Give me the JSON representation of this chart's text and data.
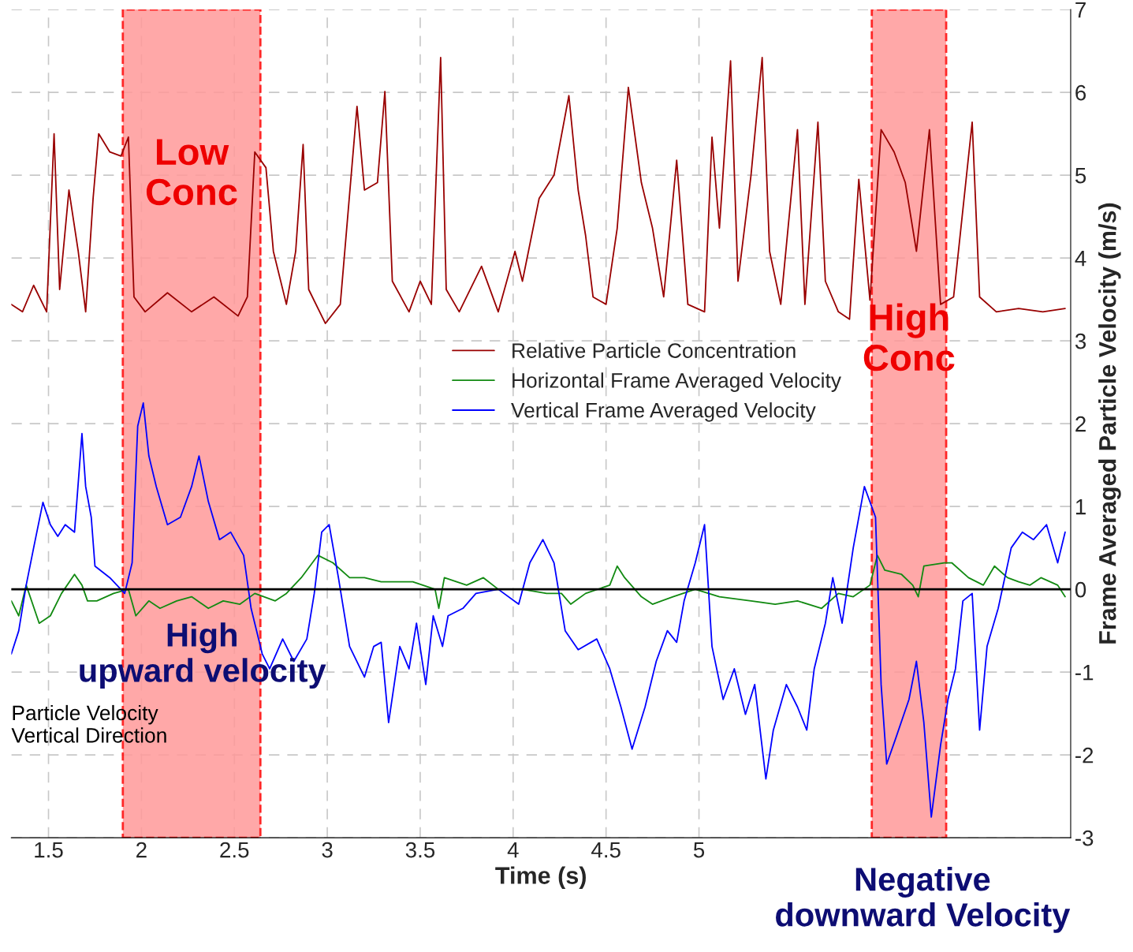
{
  "chart_data": {
    "type": "line",
    "xlabel": "Time (s)",
    "ylabel": "Frame Averaged Particle Velocity (m/s)",
    "xlim": [
      1.3,
      7.0
    ],
    "xticks": [
      1.5,
      2,
      2.5,
      3,
      3.5,
      4,
      4.5,
      5
    ],
    "ylim": [
      -3,
      7
    ],
    "yticks": [
      -3,
      -2,
      -1,
      0,
      1,
      2,
      3,
      4,
      5,
      6,
      7
    ],
    "grid": true,
    "legend": "center",
    "line_style": "solid",
    "marker": "none",
    "series": [
      {
        "name": "Relative Particle Concentration",
        "color": "#990000",
        "x": [
          1.3,
          1.36,
          1.42,
          1.49,
          1.53,
          1.56,
          1.61,
          1.66,
          1.7,
          1.74,
          1.77,
          1.83,
          1.89,
          1.93,
          1.96,
          2.02,
          2.14,
          2.27,
          2.39,
          2.52,
          2.57,
          2.61,
          2.67,
          2.71,
          2.78,
          2.83,
          2.87,
          2.9,
          2.99,
          3.07,
          3.16,
          3.2,
          3.27,
          3.31,
          3.35,
          3.44,
          3.5,
          3.56,
          3.61,
          3.64,
          3.71,
          3.83,
          3.92,
          4.01,
          4.05,
          4.14,
          4.22,
          4.3,
          4.35,
          4.39,
          4.43,
          4.5,
          4.56,
          4.62,
          4.69,
          4.75,
          4.81,
          4.88,
          4.94,
          5.03,
          5.07,
          5.11,
          5.17,
          5.21,
          5.28,
          5.34,
          5.38,
          5.44,
          5.53,
          5.57,
          5.64,
          5.68,
          5.75,
          5.81,
          5.86,
          5.92,
          5.98,
          6.05,
          6.11,
          6.17,
          6.24,
          6.3,
          6.37,
          6.47,
          6.51,
          6.6,
          6.72,
          6.85,
          6.97
        ],
        "values": [
          3.44,
          3.35,
          3.67,
          3.35,
          5.5,
          3.62,
          4.82,
          4.08,
          3.35,
          4.72,
          5.5,
          5.28,
          5.23,
          5.46,
          3.53,
          3.35,
          3.58,
          3.35,
          3.53,
          3.3,
          3.53,
          5.28,
          5.09,
          4.08,
          3.44,
          4.08,
          5.37,
          3.62,
          3.21,
          3.44,
          5.83,
          4.82,
          4.91,
          6.01,
          3.72,
          3.35,
          3.72,
          3.44,
          6.42,
          3.62,
          3.35,
          3.9,
          3.35,
          4.08,
          3.72,
          4.72,
          5.0,
          5.96,
          4.82,
          4.27,
          3.53,
          3.44,
          4.36,
          6.06,
          4.91,
          4.36,
          3.53,
          5.18,
          3.44,
          3.35,
          5.46,
          4.36,
          6.38,
          3.72,
          5.0,
          6.42,
          4.08,
          3.44,
          5.55,
          3.44,
          5.64,
          3.72,
          3.35,
          3.26,
          4.95,
          3.49,
          5.55,
          5.28,
          4.91,
          4.08,
          5.55,
          3.44,
          3.53,
          5.64,
          3.53,
          3.35,
          3.39,
          3.35,
          3.39
        ]
      },
      {
        "name": "Horizontal Frame Averaged Velocity",
        "color": "#128a12",
        "x": [
          1.3,
          1.34,
          1.38,
          1.45,
          1.51,
          1.57,
          1.64,
          1.68,
          1.71,
          1.76,
          1.85,
          1.93,
          1.97,
          2.04,
          2.1,
          2.19,
          2.27,
          2.36,
          2.44,
          2.53,
          2.61,
          2.72,
          2.78,
          2.86,
          2.95,
          3.03,
          3.12,
          3.2,
          3.29,
          3.37,
          3.46,
          3.58,
          3.6,
          3.63,
          3.75,
          3.84,
          3.92,
          4.05,
          4.18,
          4.26,
          4.31,
          4.39,
          4.52,
          4.56,
          4.6,
          4.69,
          4.75,
          4.86,
          4.98,
          5.11,
          5.28,
          5.41,
          5.53,
          5.66,
          5.75,
          5.83,
          5.92,
          5.96,
          6.0,
          6.09,
          6.15,
          6.18,
          6.21,
          6.32,
          6.36,
          6.45,
          6.53,
          6.59,
          6.66,
          6.72,
          6.78,
          6.84,
          6.93,
          6.97
        ],
        "values": [
          -0.14,
          -0.32,
          0.05,
          -0.41,
          -0.32,
          -0.05,
          0.18,
          0.05,
          -0.14,
          -0.14,
          -0.05,
          0,
          -0.32,
          -0.14,
          -0.23,
          -0.14,
          -0.09,
          -0.23,
          -0.14,
          -0.18,
          -0.05,
          -0.14,
          -0.05,
          0.14,
          0.41,
          0.32,
          0.14,
          0.14,
          0.09,
          0.09,
          0.09,
          0,
          -0.23,
          0.14,
          0.05,
          0.14,
          0,
          0,
          -0.05,
          -0.05,
          -0.18,
          -0.05,
          0.05,
          0.28,
          0.14,
          -0.09,
          -0.18,
          -0.09,
          0,
          -0.09,
          -0.14,
          -0.18,
          -0.14,
          -0.23,
          -0.05,
          -0.09,
          0.05,
          0.41,
          0.23,
          0.18,
          0.05,
          -0.09,
          0.28,
          0.32,
          0.32,
          0.14,
          0.05,
          0.28,
          0.14,
          0.09,
          0.05,
          0.14,
          0.05,
          -0.09
        ]
      },
      {
        "name": "Vertical Frame Averaged Velocity",
        "color": "#0000ff",
        "x": [
          1.3,
          1.34,
          1.38,
          1.42,
          1.47,
          1.51,
          1.55,
          1.59,
          1.64,
          1.68,
          1.7,
          1.73,
          1.75,
          1.83,
          1.91,
          1.95,
          1.98,
          2.01,
          2.04,
          2.08,
          2.14,
          2.21,
          2.27,
          2.31,
          2.36,
          2.42,
          2.48,
          2.55,
          2.59,
          2.65,
          2.69,
          2.76,
          2.82,
          2.89,
          2.93,
          2.97,
          3.01,
          3.06,
          3.12,
          3.2,
          3.25,
          3.29,
          3.33,
          3.39,
          3.44,
          3.48,
          3.53,
          3.57,
          3.62,
          3.65,
          3.73,
          3.8,
          3.92,
          4.03,
          4.09,
          4.16,
          4.22,
          4.28,
          4.35,
          4.45,
          4.52,
          4.58,
          4.64,
          4.71,
          4.77,
          4.83,
          4.88,
          4.92,
          4.98,
          5.03,
          5.07,
          5.13,
          5.19,
          5.25,
          5.3,
          5.36,
          5.4,
          5.47,
          5.53,
          5.58,
          5.62,
          5.68,
          5.72,
          5.77,
          5.83,
          5.89,
          5.95,
          5.98,
          6.01,
          6.06,
          6.13,
          6.17,
          6.21,
          6.25,
          6.3,
          6.34,
          6.38,
          6.42,
          6.47,
          6.51,
          6.55,
          6.61,
          6.68,
          6.74,
          6.8,
          6.87,
          6.93,
          6.97
        ],
        "values": [
          -0.78,
          -0.5,
          0.05,
          0.5,
          1.05,
          0.78,
          0.64,
          0.78,
          0.69,
          1.88,
          1.24,
          0.87,
          0.28,
          0.14,
          -0.05,
          0.32,
          1.97,
          2.25,
          1.61,
          1.24,
          0.78,
          0.87,
          1.24,
          1.61,
          1.06,
          0.6,
          0.69,
          0.41,
          -0.23,
          -0.78,
          -0.96,
          -0.6,
          -0.87,
          -0.6,
          -0.05,
          0.69,
          0.78,
          0.14,
          -0.69,
          -1.06,
          -0.69,
          -0.64,
          -1.61,
          -0.69,
          -0.96,
          -0.41,
          -1.15,
          -0.32,
          -0.69,
          -0.32,
          -0.23,
          -0.05,
          0,
          -0.18,
          0.32,
          0.6,
          0.32,
          -0.5,
          -0.73,
          -0.6,
          -0.96,
          -1.42,
          -1.93,
          -1.42,
          -0.87,
          -0.5,
          -0.64,
          -0.14,
          0.32,
          0.78,
          -0.69,
          -1.33,
          -0.96,
          -1.51,
          -1.15,
          -2.29,
          -1.7,
          -1.15,
          -1.42,
          -1.7,
          -0.96,
          -0.41,
          0.14,
          -0.41,
          0.5,
          1.24,
          0.87,
          -1.15,
          -2.11,
          -1.79,
          -1.33,
          -0.87,
          -1.61,
          -2.75,
          -1.88,
          -1.33,
          -0.96,
          -0.14,
          -0.05,
          -1.7,
          -0.69,
          -0.23,
          0.5,
          0.69,
          0.6,
          0.78,
          0.32,
          0.69
        ]
      }
    ],
    "ref_lines": [
      {
        "axis": "y",
        "value": 0,
        "color": "#000000"
      }
    ],
    "bands": [
      {
        "axis": "x",
        "from": 1.9,
        "to": 2.64,
        "label": "Low Conc",
        "color": "#ff9999"
      },
      {
        "axis": "x",
        "from": 5.93,
        "to": 6.33,
        "label": "High Conc",
        "color": "#ff9999"
      }
    ],
    "annotations": [
      "High upward velocity",
      "Negative downward Velocity",
      "Particle Velocity\nVertical Direction"
    ]
  }
}
